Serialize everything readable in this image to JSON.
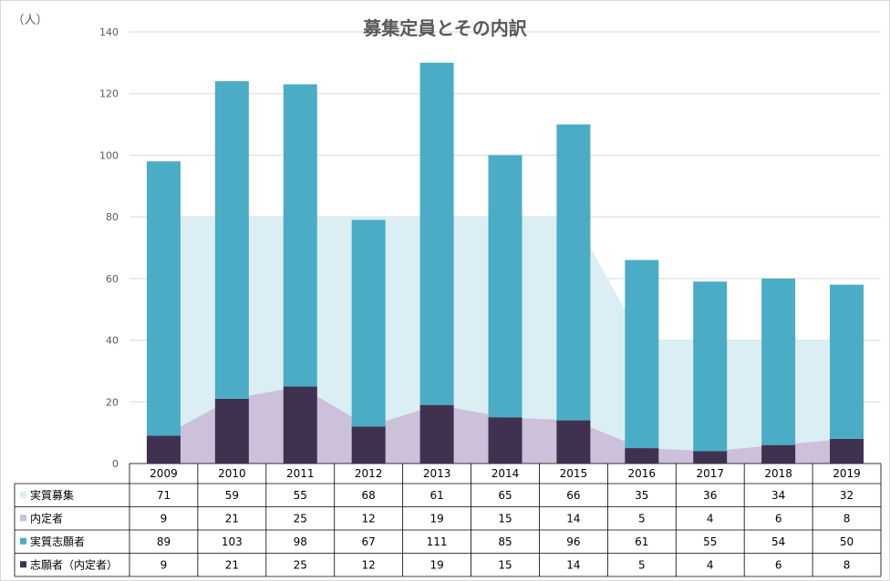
{
  "chart_data": {
    "type": "bar",
    "title": "募集定員とその内訳",
    "ylabel": "（人）",
    "ylim": [
      0,
      140
    ],
    "yticks": [
      0,
      20,
      40,
      60,
      80,
      100,
      120,
      140
    ],
    "grid": true,
    "categories": [
      "2009",
      "2010",
      "2011",
      "2012",
      "2013",
      "2014",
      "2015",
      "2016",
      "2017",
      "2018",
      "2019"
    ],
    "series": [
      {
        "name": "実質募集",
        "kind": "area",
        "color": "#daeef3",
        "values": [
          71,
          59,
          55,
          68,
          61,
          65,
          66,
          35,
          36,
          34,
          32
        ]
      },
      {
        "name": "内定者",
        "kind": "area",
        "color": "#ccc0da",
        "values": [
          9,
          21,
          25,
          12,
          19,
          15,
          14,
          5,
          4,
          6,
          8
        ]
      },
      {
        "name": "実質志願者",
        "kind": "stacked-bar",
        "color": "#4bacc6",
        "values": [
          89,
          103,
          98,
          67,
          111,
          85,
          96,
          61,
          55,
          54,
          50
        ]
      },
      {
        "name": "志願者（内定者）",
        "kind": "stacked-bar",
        "color": "#403151",
        "values": [
          9,
          21,
          25,
          12,
          19,
          15,
          14,
          5,
          4,
          6,
          8
        ]
      }
    ],
    "data_table": true
  }
}
